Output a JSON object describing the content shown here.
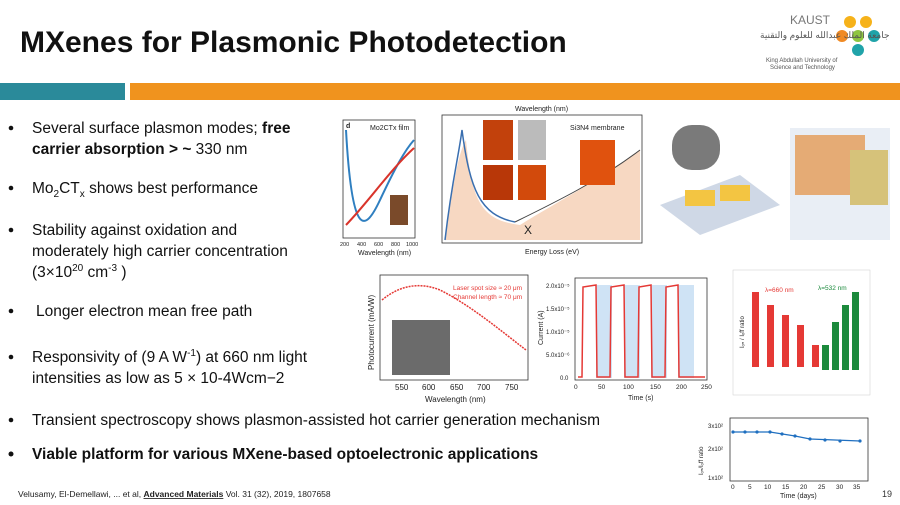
{
  "header": {
    "title": "MXenes for Plasmonic Photodetection",
    "logo": {
      "name": "KAUST",
      "arabic": "جامعة الملك عبدالله للعلوم والتقنية",
      "english_1": "King Abdullah University of",
      "english_2": "Science and Technology"
    }
  },
  "bullets": [
    {
      "lines": [
        [
          "Several surface plasmon modes; ",
          {
            "bold": "free"
          }
        ],
        [
          {
            "bold": "carrier absorption > ~"
          },
          " 330 nm"
        ]
      ]
    },
    {
      "parts": [
        "Mo",
        "2",
        "CT",
        "x",
        " shows best performance"
      ]
    },
    {
      "lines": [
        "Stability against oxidation and",
        "moderately high carrier concentration"
      ],
      "last": [
        "(3×10",
        "20",
        " cm",
        "-3",
        " )"
      ]
    },
    {
      "text": "Longer electron mean free path"
    },
    {
      "parts": [
        "Responsivity of (9 A W",
        "-1",
        ") at 660 nm light"
      ],
      "line2": "intensities as low as 5 × 10-4Wcm−2"
    },
    {
      "text": "Transient spectroscopy shows plasmon-assisted hot carrier generation mechanism"
    },
    {
      "bold": "Viable platform for various MXene-based optoelectronic applications"
    }
  ],
  "citation": {
    "authors": "Velusamy, El-Demellawi, ... et al, ",
    "journal": "Advanced Materials",
    "rest": " Vol. 31 (32), 2019, 1807658"
  },
  "page_number": "19",
  "figures": {
    "absorption": {
      "panel": "d",
      "film": "Mo2CTx film",
      "xlabel": "Wavelength (nm)",
      "xticks": [
        "200",
        "400",
        "600",
        "800",
        "1000"
      ]
    },
    "eels": {
      "top": "Wavelength (nm)",
      "bottom": "Energy Loss (eV)",
      "membrane": "Si3N4 membrane",
      "mark": "X"
    },
    "photocurrent": {
      "ylabel": "Photocurrent (mA/W)",
      "xlabel": "Wavelength (nm)",
      "legend_1": "Laser spot size ≈ 20 μm",
      "legend_2": "Channel length ≈ 70 μm",
      "xticks": [
        "550",
        "600",
        "650",
        "700",
        "750"
      ]
    },
    "current": {
      "ylabel": "Current (A)",
      "xlabel": "Time (s)",
      "yticks": [
        "2.0x10⁻⁵",
        "1.5x10⁻⁵",
        "1.0x10⁻⁵",
        "5.0x10⁻⁶",
        "0.0"
      ],
      "xticks": [
        "0",
        "50",
        "100",
        "150",
        "200",
        "250"
      ]
    },
    "ratio_bars": {
      "red": "λ=660 nm",
      "green": "λ=532 nm",
      "ylabel": "Iₒₙ / Iₒff ratio"
    },
    "stability": {
      "ylabel": "Iₒₙ/Iₒff ratio",
      "xlabel": "Time (days)",
      "yticks": [
        "3x10²",
        "2x10²",
        "1x10²"
      ],
      "xticks": [
        "0",
        "5",
        "10",
        "15",
        "20",
        "25",
        "30",
        "35"
      ]
    }
  }
}
